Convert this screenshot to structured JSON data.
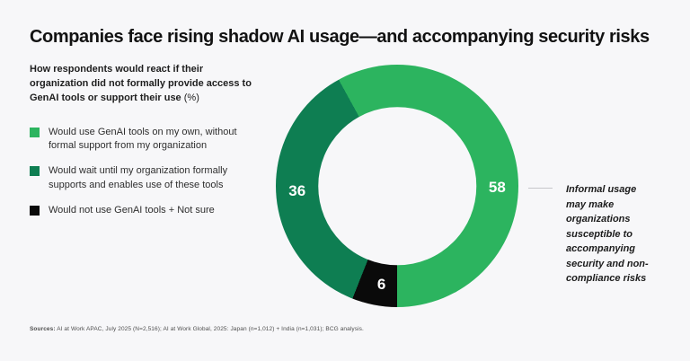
{
  "page": {
    "title": "Companies face rising shadow AI usage—and accompanying security risks",
    "background_color": "#f7f7f9"
  },
  "subtitle": {
    "text": "How respondents would react if their organization did not formally provide access to GenAI tools or support their use",
    "unit_suffix": "(%)"
  },
  "legend": {
    "items": [
      {
        "label": "Would use GenAI tools on my own, without formal support from my organization",
        "color": "#2cb45f"
      },
      {
        "label": "Would wait until my organization formally supports and enables use of these tools",
        "color": "#0e7e52"
      },
      {
        "label": "Would not use GenAI tools + Not sure",
        "color": "#0a0a0a"
      }
    ]
  },
  "chart_data": {
    "type": "pie",
    "subtype": "donut",
    "title": "How respondents would react if their organization did not formally provide access to GenAI tools or support their use (%)",
    "unit": "%",
    "slices": [
      {
        "label": "Would use GenAI tools on my own, without formal support from my organization",
        "value": 58,
        "color": "#2cb45f",
        "value_label": "58",
        "label_angle_deg": 91
      },
      {
        "label": "Would wait until my organization formally supports and enables use of these tools",
        "value": 36,
        "color": "#0e7e52",
        "value_label": "36",
        "label_angle_deg": 267
      },
      {
        "label": "Would not use GenAI tools + Not sure",
        "value": 6,
        "color": "#0a0a0a",
        "value_label": "6",
        "label_angle_deg": 189
      }
    ],
    "layout": {
      "start_angle_deg": 180,
      "direction": "clockwise",
      "slice_order_from_start": "reverse",
      "donut_hole_ratio": 0.65,
      "value_label_color": "#ffffff",
      "legend_position": "left"
    }
  },
  "annotation": {
    "text": "Informal usage may make organizations susceptible to accompanying security and non-compliance risks"
  },
  "sources": {
    "prefix": "Sources:",
    "text": "AI at Work APAC, July 2025 (N=2,516); AI at Work Global, 2025: Japan (n=1,012) + India (n=1,031); BCG analysis."
  }
}
